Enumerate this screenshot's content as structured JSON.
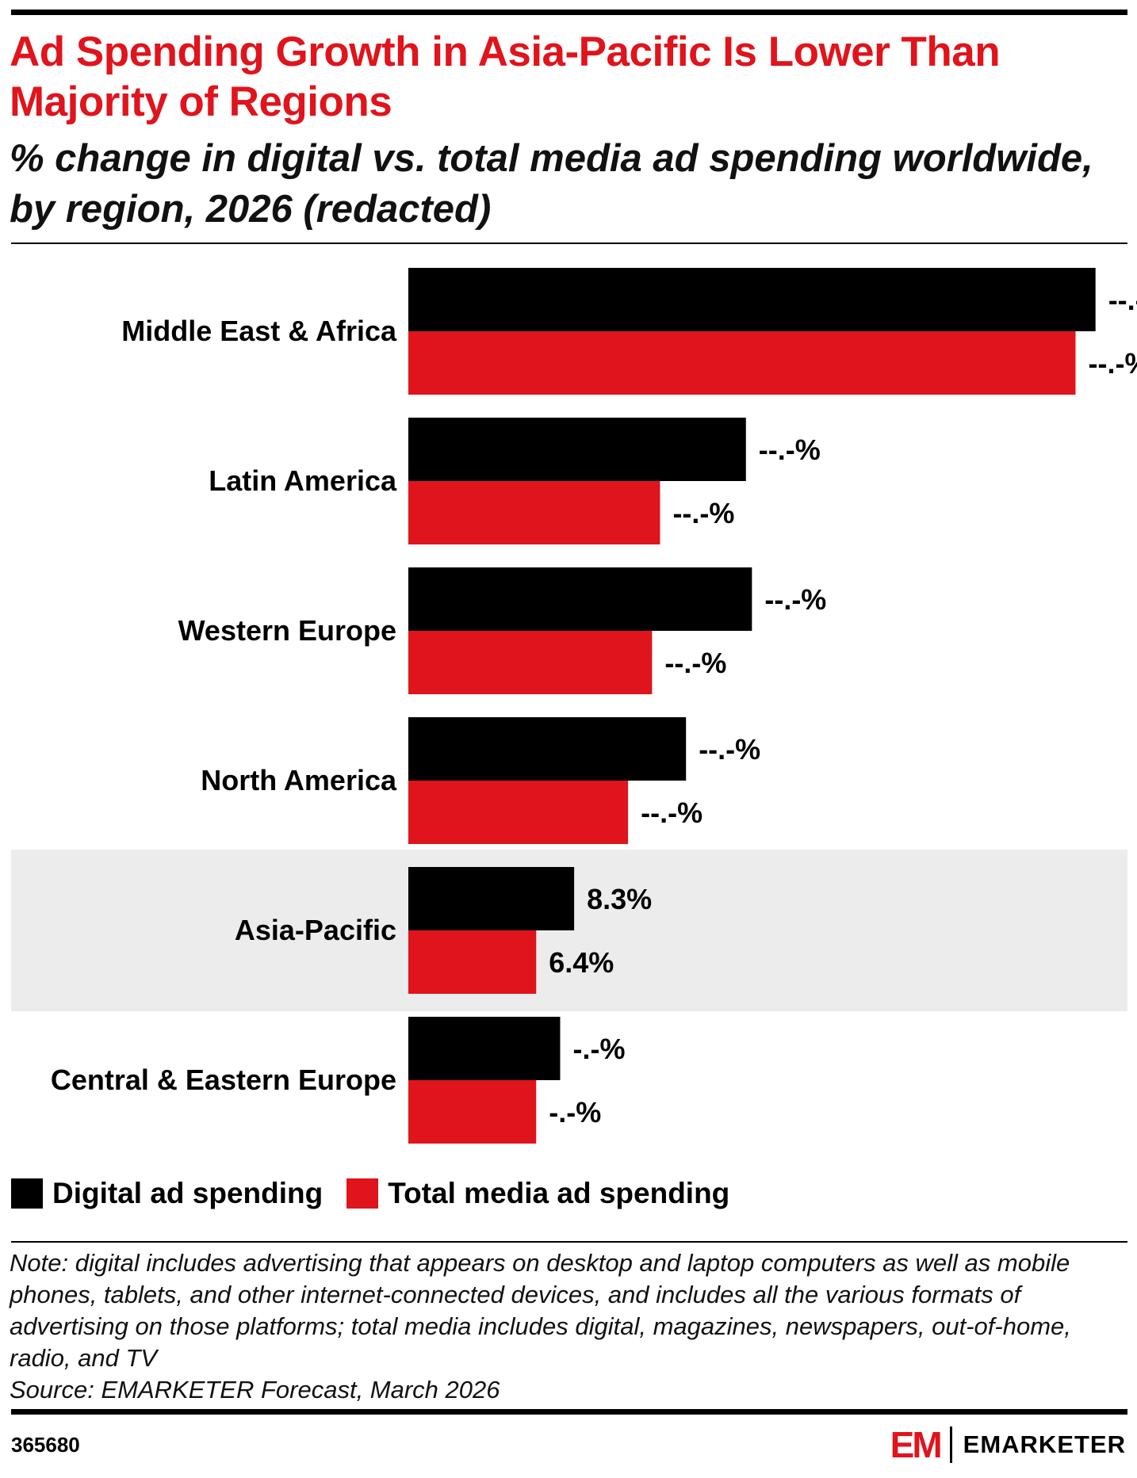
{
  "header": {
    "title": "Ad Spending Growth in Asia-Pacific Is Lower Than Majority of Regions",
    "subtitle": "% change in digital vs. total media ad spending worldwide, by region, 2026 (redacted)"
  },
  "chart_data": {
    "type": "bar",
    "orientation": "horizontal",
    "categories": [
      "Middle East & Africa",
      "Latin America",
      "Western Europe",
      "North America",
      "Asia-Pacific",
      "Central & Eastern Europe"
    ],
    "highlighted_category": "Asia-Pacific",
    "series": [
      {
        "name": "Digital ad spending",
        "color": "#000000",
        "values": [
          null,
          null,
          null,
          null,
          8.3,
          null
        ],
        "approx_values": [
          34.4,
          16.9,
          17.2,
          13.9,
          8.3,
          7.6
        ],
        "labels": [
          "--.-%",
          "--.-%",
          "--.-%",
          "--.-%",
          "8.3%",
          "-.-%"
        ]
      },
      {
        "name": "Total media ad spending",
        "color": "#e0141c",
        "values": [
          null,
          null,
          null,
          null,
          6.4,
          null
        ],
        "approx_values": [
          33.4,
          12.6,
          12.2,
          11.0,
          6.4,
          6.4
        ],
        "labels": [
          "--.-%",
          "--.-%",
          "--.-%",
          "--.-%",
          "6.4%",
          "-.-%"
        ]
      }
    ],
    "xlim": [
      0,
      36
    ],
    "grid": false,
    "legend": "bottom-left"
  },
  "footer": {
    "note": "Note: digital includes advertising that appears on desktop and laptop computers as well as mobile phones, tablets, and other internet-connected devices, and includes all the various formats of advertising on those platforms; total media includes digital, magazines, newspapers, out-of-home, radio, and TV",
    "source": "Source: EMARKETER Forecast, March 2026",
    "chart_id": "365680",
    "brand_mark": "EM",
    "brand": "EMARKETER"
  },
  "colors": {
    "accent": "#e0141c",
    "digital": "#000000",
    "total": "#e0141c",
    "highlight_band": "#ececec"
  }
}
